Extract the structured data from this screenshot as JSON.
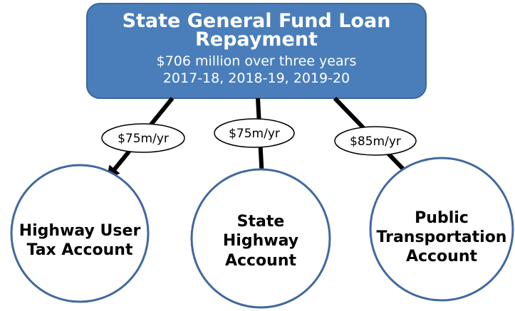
{
  "header": {
    "title_lines": [
      "State General Fund  Loan",
      "Repayment"
    ],
    "subtitle_lines": [
      "$706 million over three years",
      "2017-18, 2018-19, 2019-20"
    ]
  },
  "edges": [
    {
      "label": "$75m/yr"
    },
    {
      "label": "$75m/yr"
    },
    {
      "label": "$85m/yr"
    }
  ],
  "nodes": [
    {
      "label_lines": [
        "Highway User",
        "Tax Account"
      ]
    },
    {
      "label_lines": [
        "State",
        "Highway",
        "Account"
      ]
    },
    {
      "label_lines": [
        "Public",
        "Transportation",
        "Account"
      ]
    }
  ]
}
